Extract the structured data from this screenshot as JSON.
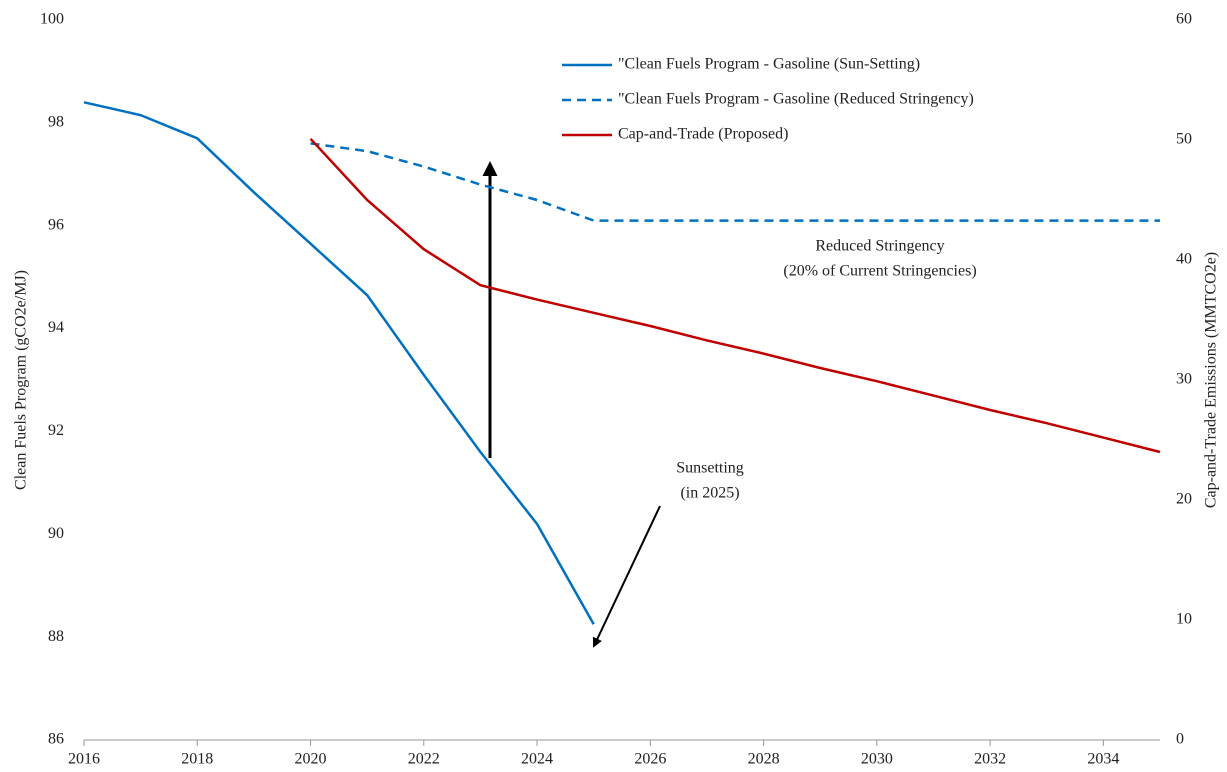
{
  "chart_data": {
    "type": "line",
    "y_label": "Clean Fuels Program (gCO2e/MJ)",
    "y2_label": "Cap-and-Trade Emissions (MMTCO2e)",
    "x": [
      2016,
      2017,
      2018,
      2019,
      2020,
      2021,
      2022,
      2023,
      2024,
      2025,
      2026,
      2027,
      2028,
      2029,
      2030,
      2031,
      2032,
      2033,
      2034,
      2035
    ],
    "xlim": [
      2016,
      2035
    ],
    "xticks": [
      2016,
      2018,
      2020,
      2022,
      2024,
      2026,
      2028,
      2030,
      2032,
      2034
    ],
    "ylim": [
      86,
      100
    ],
    "yticks": [
      86,
      88,
      90,
      92,
      94,
      96,
      98,
      100
    ],
    "y2lim": [
      0,
      60
    ],
    "y2ticks": [
      0,
      10,
      20,
      30,
      40,
      50,
      60
    ],
    "series": [
      {
        "name": "\"Clean Fuels Program - Gasoline (Sun-Setting)",
        "color": "#0070c0",
        "dashed": false,
        "values": [
          98.4,
          98.15,
          97.7,
          96.65,
          95.65,
          94.65,
          93.1,
          91.6,
          90.2,
          88.25,
          null,
          null,
          null,
          null,
          null,
          null,
          null,
          null,
          null,
          null
        ]
      },
      {
        "name": "\"Clean Fuels Program - Gasoline (Reduced Stringency)",
        "color": "#0070c0",
        "dashed": true,
        "values": [
          null,
          null,
          null,
          null,
          97.6,
          97.45,
          97.15,
          96.8,
          96.5,
          96.1,
          96.1,
          96.1,
          96.1,
          96.1,
          96.1,
          96.1,
          96.1,
          96.1,
          96.1,
          96.1
        ]
      },
      {
        "name": "Cap-and-Trade (Proposed)",
        "color": "#c00000",
        "dashed": false,
        "axis": "y2",
        "values": [
          null,
          null,
          null,
          null,
          50.1,
          45,
          40.9,
          37.9,
          36.7,
          35.6,
          34.5,
          33.3,
          32.2,
          31.0,
          29.9,
          28.7,
          27.5,
          26.4,
          25.2,
          24.0
        ]
      }
    ],
    "annotations": [
      "Reduced Stringency",
      "(20% of Current Stringencies)",
      "Sunsetting",
      "(in 2025)"
    ]
  }
}
